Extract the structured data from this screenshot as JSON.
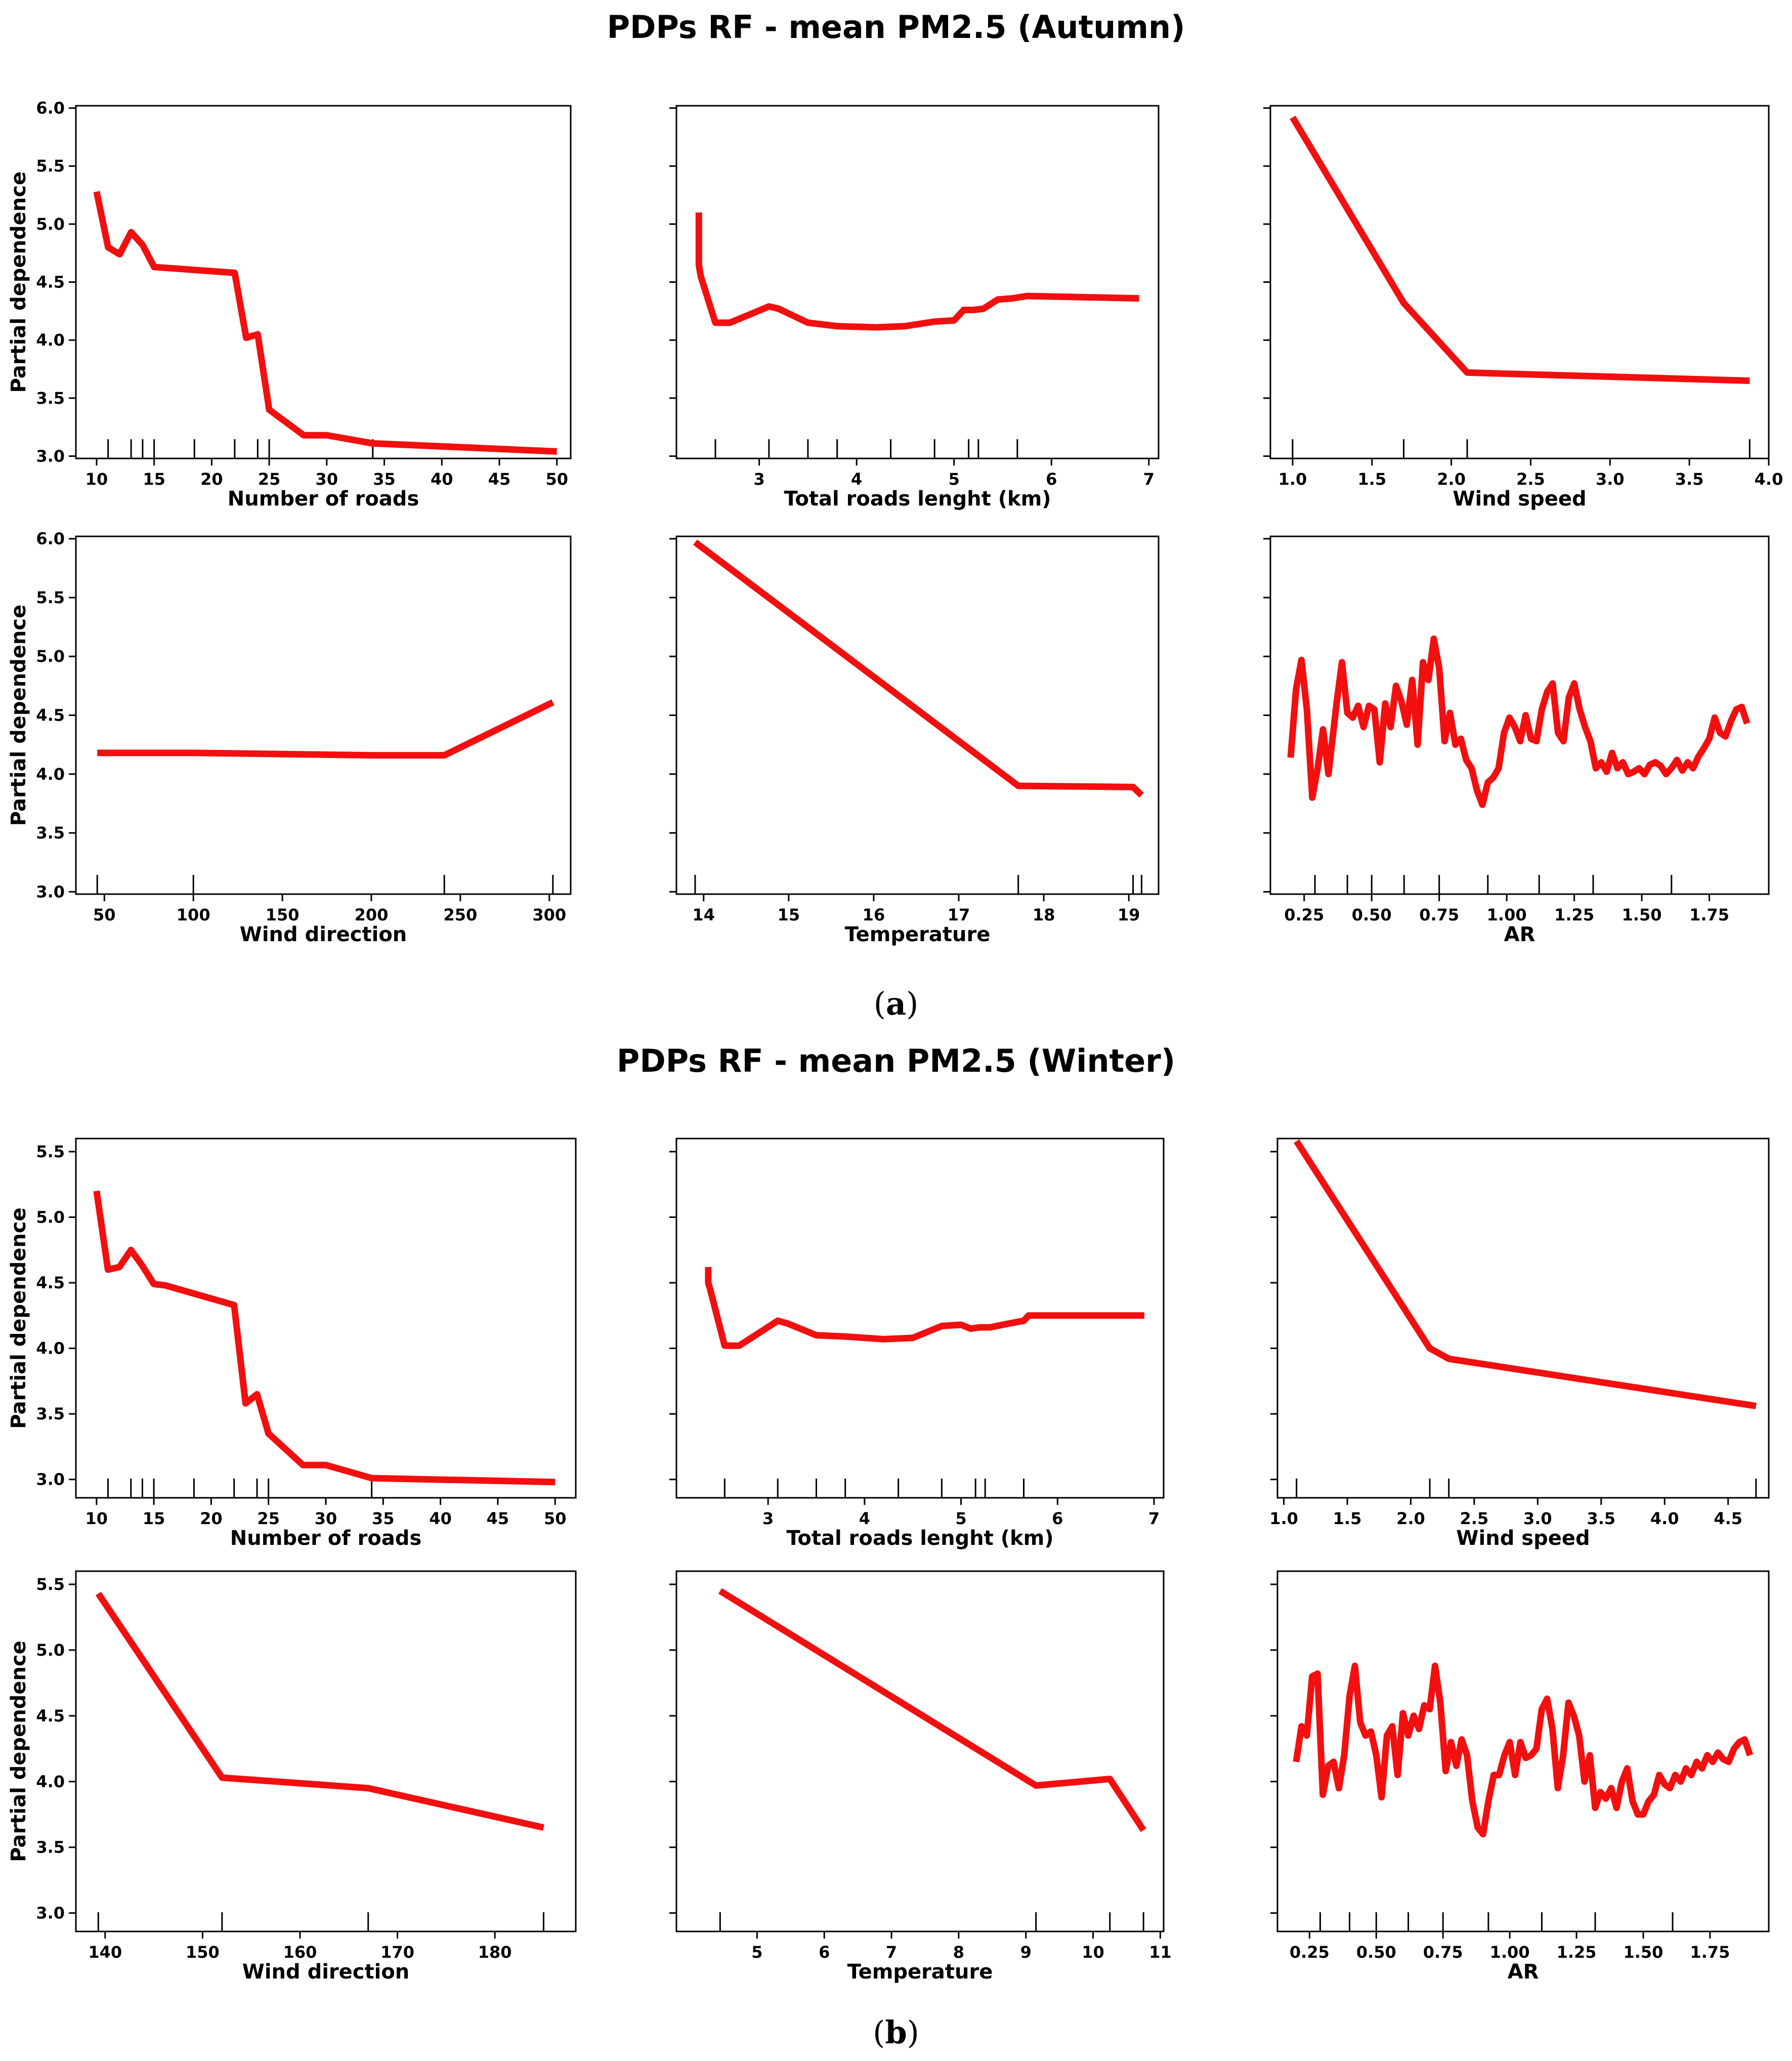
{
  "figure_a": {
    "title": "PDPs RF - mean PM2.5 (Autumn)",
    "caption": {
      "open": "(",
      "letter": "a",
      "close": ")"
    }
  },
  "figure_b": {
    "title": "PDPs RF - mean PM2.5 (Winter)",
    "caption": {
      "open": "(",
      "letter": "b",
      "close": ")"
    }
  },
  "style": {
    "line_color": "#f20f0f",
    "axis_color": "#000000"
  },
  "chart_data": [
    {
      "id": "a1",
      "type": "line",
      "figure": "a",
      "xlabel": "Number of roads",
      "ylabel": "Partial dependence",
      "xlim": [
        8.2,
        51.2
      ],
      "ylim": [
        2.98,
        6.02
      ],
      "xticks": [
        10,
        15,
        20,
        25,
        30,
        35,
        40,
        45,
        50
      ],
      "yticks": [
        3.0,
        3.5,
        4.0,
        4.5,
        5.0,
        5.5,
        6.0
      ],
      "ytick_labels": [
        "3.0",
        "3.5",
        "4.0",
        "4.5",
        "5.0",
        "5.5",
        "6.0"
      ],
      "rug": [
        11,
        13,
        14,
        15,
        18.5,
        22,
        24,
        25,
        34
      ],
      "x": [
        10,
        11,
        12,
        13,
        14,
        15,
        22,
        23,
        24,
        25,
        28,
        30,
        34,
        50
      ],
      "y": [
        5.28,
        4.8,
        4.74,
        4.93,
        4.82,
        4.63,
        4.58,
        4.02,
        4.05,
        3.4,
        3.18,
        3.18,
        3.11,
        3.04
      ]
    },
    {
      "id": "a2",
      "type": "line",
      "figure": "a",
      "xlabel": "Total roads lenght (km)",
      "ylabel": "",
      "xlim": [
        2.15,
        7.1
      ],
      "ylim": [
        2.98,
        6.02
      ],
      "xticks": [
        3,
        4,
        5,
        6,
        7
      ],
      "yticks": [
        3.0,
        3.5,
        4.0,
        4.5,
        5.0,
        5.5,
        6.0
      ],
      "rug": [
        2.55,
        3.1,
        3.5,
        3.8,
        4.35,
        4.8,
        5.15,
        5.25,
        5.65
      ],
      "x": [
        2.38,
        2.38,
        2.4,
        2.55,
        2.7,
        3.1,
        3.2,
        3.5,
        3.8,
        4.2,
        4.5,
        4.8,
        5.0,
        5.1,
        5.2,
        5.3,
        5.45,
        5.6,
        5.75,
        6.9
      ],
      "y": [
        5.1,
        4.65,
        4.55,
        4.15,
        4.15,
        4.29,
        4.27,
        4.15,
        4.12,
        4.11,
        4.12,
        4.16,
        4.17,
        4.26,
        4.26,
        4.27,
        4.35,
        4.36,
        4.38,
        4.36
      ]
    },
    {
      "id": "a3",
      "type": "line",
      "figure": "a",
      "xlabel": "Wind speed",
      "ylabel": "",
      "xlim": [
        0.86,
        4.0
      ],
      "ylim": [
        2.98,
        6.02
      ],
      "xticks": [
        1.0,
        1.5,
        2.0,
        2.5,
        3.0,
        3.5,
        4.0
      ],
      "xtick_labels": [
        "1.0",
        "1.5",
        "2.0",
        "2.5",
        "3.0",
        "3.5",
        "4.0"
      ],
      "yticks": [
        3.0,
        3.5,
        4.0,
        4.5,
        5.0,
        5.5,
        6.0
      ],
      "rug": [
        1.0,
        1.7,
        2.1,
        3.88
      ],
      "x": [
        1.0,
        1.7,
        2.1,
        3.88
      ],
      "y": [
        5.92,
        4.32,
        3.72,
        3.65
      ]
    },
    {
      "id": "a4",
      "type": "line",
      "figure": "a",
      "xlabel": "Wind direction",
      "ylabel": "Partial dependence",
      "xlim": [
        34,
        312
      ],
      "ylim": [
        2.98,
        6.02
      ],
      "xticks": [
        50,
        100,
        150,
        200,
        250,
        300
      ],
      "yticks": [
        3.0,
        3.5,
        4.0,
        4.5,
        5.0,
        5.5,
        6.0
      ],
      "ytick_labels": [
        "3.0",
        "3.5",
        "4.0",
        "4.5",
        "5.0",
        "5.5",
        "6.0"
      ],
      "rug": [
        46,
        100,
        241,
        302
      ],
      "x": [
        46,
        100,
        150,
        200,
        241,
        302
      ],
      "y": [
        4.18,
        4.18,
        4.17,
        4.16,
        4.16,
        4.61
      ]
    },
    {
      "id": "a5",
      "type": "line",
      "figure": "a",
      "xlabel": "Temperature",
      "ylabel": "",
      "xlim": [
        13.68,
        19.35
      ],
      "ylim": [
        2.98,
        6.02
      ],
      "xticks": [
        14,
        15,
        16,
        17,
        18,
        19
      ],
      "yticks": [
        3.0,
        3.5,
        4.0,
        4.5,
        5.0,
        5.5,
        6.0
      ],
      "rug": [
        13.9,
        17.7,
        19.05,
        19.15
      ],
      "x": [
        13.9,
        17.7,
        19.05,
        19.15
      ],
      "y": [
        5.97,
        3.9,
        3.89,
        3.82
      ]
    },
    {
      "id": "a6",
      "type": "line",
      "figure": "a",
      "xlabel": "AR",
      "ylabel": "",
      "xlim": [
        0.125,
        1.97
      ],
      "ylim": [
        2.98,
        6.02
      ],
      "xticks": [
        0.25,
        0.5,
        0.75,
        1.0,
        1.25,
        1.5,
        1.75
      ],
      "xtick_labels": [
        "0.25",
        "0.50",
        "0.75",
        "1.00",
        "1.25",
        "1.50",
        "1.75"
      ],
      "yticks": [
        3.0,
        3.5,
        4.0,
        4.5,
        5.0,
        5.5,
        6.0
      ],
      "rug": [
        0.29,
        0.41,
        0.5,
        0.62,
        0.75,
        0.93,
        1.12,
        1.32,
        1.61
      ],
      "x": [
        0.2,
        0.22,
        0.24,
        0.26,
        0.28,
        0.3,
        0.32,
        0.34,
        0.37,
        0.39,
        0.41,
        0.43,
        0.45,
        0.47,
        0.49,
        0.51,
        0.53,
        0.55,
        0.57,
        0.59,
        0.61,
        0.63,
        0.65,
        0.67,
        0.69,
        0.71,
        0.73,
        0.75,
        0.77,
        0.79,
        0.81,
        0.83,
        0.85,
        0.87,
        0.89,
        0.91,
        0.93,
        0.95,
        0.97,
        0.99,
        1.01,
        1.03,
        1.05,
        1.07,
        1.09,
        1.11,
        1.13,
        1.15,
        1.17,
        1.19,
        1.21,
        1.23,
        1.25,
        1.27,
        1.29,
        1.31,
        1.33,
        1.35,
        1.37,
        1.39,
        1.41,
        1.43,
        1.45,
        1.47,
        1.49,
        1.51,
        1.53,
        1.55,
        1.57,
        1.59,
        1.61,
        1.63,
        1.65,
        1.67,
        1.69,
        1.71,
        1.73,
        1.75,
        1.77,
        1.79,
        1.81,
        1.83,
        1.85,
        1.87,
        1.89
      ],
      "y": [
        4.14,
        4.72,
        4.97,
        4.55,
        3.8,
        4.05,
        4.38,
        4.0,
        4.6,
        4.95,
        4.52,
        4.48,
        4.58,
        4.4,
        4.58,
        4.55,
        4.1,
        4.6,
        4.4,
        4.75,
        4.62,
        4.42,
        4.8,
        4.25,
        4.95,
        4.8,
        5.15,
        4.9,
        4.28,
        4.52,
        4.25,
        4.3,
        4.12,
        4.05,
        3.86,
        3.74,
        3.93,
        3.97,
        4.05,
        4.35,
        4.48,
        4.4,
        4.28,
        4.5,
        4.3,
        4.28,
        4.55,
        4.7,
        4.77,
        4.35,
        4.28,
        4.65,
        4.77,
        4.55,
        4.4,
        4.28,
        4.05,
        4.1,
        4.02,
        4.18,
        4.05,
        4.1,
        4.0,
        4.02,
        4.05,
        4.0,
        4.08,
        4.1,
        4.07,
        4.0,
        4.05,
        4.12,
        4.03,
        4.1,
        4.05,
        4.15,
        4.22,
        4.3,
        4.48,
        4.35,
        4.32,
        4.45,
        4.55,
        4.57,
        4.43
      ]
    },
    {
      "id": "b1",
      "type": "line",
      "figure": "b",
      "xlabel": "Number of roads",
      "ylabel": "Partial dependence",
      "xlim": [
        8.2,
        51.8
      ],
      "ylim": [
        2.86,
        5.6
      ],
      "xticks": [
        10,
        15,
        20,
        25,
        30,
        35,
        40,
        45,
        50
      ],
      "yticks": [
        3.0,
        3.5,
        4.0,
        4.5,
        5.0,
        5.5
      ],
      "ytick_labels": [
        "3.0",
        "3.5",
        "4.0",
        "4.5",
        "5.0",
        "5.5"
      ],
      "rug": [
        11,
        13,
        14,
        15,
        18.5,
        22,
        24,
        25,
        34
      ],
      "x": [
        10,
        11,
        12,
        13,
        14,
        15,
        16,
        22,
        23,
        24,
        25,
        28,
        30,
        34,
        50
      ],
      "y": [
        5.2,
        4.6,
        4.62,
        4.75,
        4.63,
        4.49,
        4.48,
        4.33,
        3.58,
        3.65,
        3.35,
        3.11,
        3.11,
        3.01,
        2.98
      ]
    },
    {
      "id": "b2",
      "type": "line",
      "figure": "b",
      "xlabel": "Total roads lenght (km)",
      "ylabel": "",
      "xlim": [
        2.05,
        7.1
      ],
      "ylim": [
        2.86,
        5.6
      ],
      "xticks": [
        3,
        4,
        5,
        6,
        7
      ],
      "yticks": [
        3.0,
        3.5,
        4.0,
        4.5,
        5.0,
        5.5
      ],
      "rug": [
        2.55,
        3.1,
        3.5,
        3.8,
        4.35,
        4.8,
        5.15,
        5.25,
        5.65
      ],
      "x": [
        2.38,
        2.38,
        2.4,
        2.55,
        2.7,
        3.1,
        3.2,
        3.5,
        3.8,
        4.2,
        4.5,
        4.8,
        5.0,
        5.1,
        5.2,
        5.3,
        5.5,
        5.65,
        5.7,
        6.9
      ],
      "y": [
        4.62,
        4.5,
        4.45,
        4.02,
        4.02,
        4.21,
        4.19,
        4.1,
        4.09,
        4.07,
        4.08,
        4.17,
        4.18,
        4.15,
        4.16,
        4.16,
        4.19,
        4.21,
        4.25,
        4.25
      ]
    },
    {
      "id": "b3",
      "type": "line",
      "figure": "b",
      "xlabel": "Wind speed",
      "ylabel": "",
      "xlim": [
        0.95,
        4.82
      ],
      "ylim": [
        2.86,
        5.6
      ],
      "xticks": [
        1.0,
        1.5,
        2.0,
        2.5,
        3.0,
        3.5,
        4.0,
        4.5
      ],
      "xtick_labels": [
        "1.0",
        "1.5",
        "2.0",
        "2.5",
        "3.0",
        "3.5",
        "4.0",
        "4.5"
      ],
      "yticks": [
        3.0,
        3.5,
        4.0,
        4.5,
        5.0,
        5.5
      ],
      "rug": [
        1.1,
        2.15,
        2.3,
        4.72
      ],
      "x": [
        1.1,
        2.15,
        2.3,
        4.72
      ],
      "y": [
        5.58,
        4.0,
        3.92,
        3.56
      ]
    },
    {
      "id": "b4",
      "type": "line",
      "figure": "b",
      "xlabel": "Wind direction",
      "ylabel": "Partial dependence",
      "xlim": [
        137,
        188.3
      ],
      "ylim": [
        2.86,
        5.6
      ],
      "xticks": [
        140,
        150,
        160,
        170,
        180
      ],
      "yticks": [
        3.0,
        3.5,
        4.0,
        4.5,
        5.0,
        5.5
      ],
      "ytick_labels": [
        "3.0",
        "3.5",
        "4.0",
        "4.5",
        "5.0",
        "5.5"
      ],
      "rug": [
        139.3,
        152,
        167,
        185
      ],
      "x": [
        139.3,
        152,
        167,
        185
      ],
      "y": [
        5.43,
        4.03,
        3.95,
        3.65
      ]
    },
    {
      "id": "b5",
      "type": "line",
      "figure": "b",
      "xlabel": "Temperature",
      "ylabel": "",
      "xlim": [
        3.8,
        11.05
      ],
      "ylim": [
        2.86,
        5.6
      ],
      "xticks": [
        5,
        6,
        7,
        8,
        9,
        10,
        11
      ],
      "yticks": [
        3.0,
        3.5,
        4.0,
        4.5,
        5.0,
        5.5
      ],
      "rug": [
        4.45,
        9.15,
        10.25,
        10.75
      ],
      "x": [
        4.45,
        9.15,
        10.25,
        10.75
      ],
      "y": [
        5.45,
        3.97,
        4.02,
        3.63
      ]
    },
    {
      "id": "b6",
      "type": "line",
      "figure": "b",
      "xlabel": "AR",
      "ylabel": "",
      "xlim": [
        0.13,
        1.97
      ],
      "ylim": [
        2.86,
        5.6
      ],
      "xticks": [
        0.25,
        0.5,
        0.75,
        1.0,
        1.25,
        1.5,
        1.75
      ],
      "xtick_labels": [
        "0.25",
        "0.50",
        "0.75",
        "1.00",
        "1.25",
        "1.50",
        "1.75"
      ],
      "yticks": [
        3.0,
        3.5,
        4.0,
        4.5,
        5.0,
        5.5
      ],
      "rug": [
        0.29,
        0.4,
        0.5,
        0.62,
        0.75,
        0.92,
        1.12,
        1.32,
        1.61
      ],
      "x": [
        0.2,
        0.22,
        0.24,
        0.26,
        0.28,
        0.3,
        0.32,
        0.34,
        0.36,
        0.38,
        0.4,
        0.42,
        0.44,
        0.46,
        0.48,
        0.5,
        0.52,
        0.54,
        0.56,
        0.58,
        0.6,
        0.62,
        0.64,
        0.66,
        0.68,
        0.7,
        0.72,
        0.74,
        0.76,
        0.78,
        0.8,
        0.82,
        0.84,
        0.86,
        0.88,
        0.9,
        0.92,
        0.94,
        0.96,
        0.98,
        1.0,
        1.02,
        1.04,
        1.06,
        1.08,
        1.1,
        1.12,
        1.14,
        1.16,
        1.18,
        1.2,
        1.22,
        1.24,
        1.26,
        1.28,
        1.3,
        1.32,
        1.34,
        1.36,
        1.38,
        1.4,
        1.42,
        1.44,
        1.46,
        1.48,
        1.5,
        1.52,
        1.54,
        1.56,
        1.58,
        1.6,
        1.62,
        1.64,
        1.66,
        1.68,
        1.7,
        1.72,
        1.74,
        1.76,
        1.78,
        1.8,
        1.82,
        1.84,
        1.86,
        1.88,
        1.9
      ],
      "y": [
        4.15,
        4.42,
        4.35,
        4.8,
        4.82,
        3.9,
        4.12,
        4.15,
        3.95,
        4.2,
        4.65,
        4.88,
        4.45,
        4.35,
        4.38,
        4.2,
        3.88,
        4.35,
        4.42,
        4.05,
        4.52,
        4.35,
        4.5,
        4.4,
        4.58,
        4.55,
        4.88,
        4.6,
        4.08,
        4.3,
        4.12,
        4.32,
        4.2,
        3.85,
        3.65,
        3.6,
        3.85,
        4.05,
        4.05,
        4.2,
        4.3,
        4.05,
        4.3,
        4.18,
        4.2,
        4.25,
        4.55,
        4.63,
        4.4,
        3.95,
        4.2,
        4.6,
        4.5,
        4.35,
        4.0,
        4.2,
        3.8,
        3.92,
        3.87,
        3.95,
        3.8,
        4.0,
        4.1,
        3.85,
        3.75,
        3.75,
        3.85,
        3.9,
        4.05,
        3.98,
        3.95,
        4.05,
        4.0,
        4.1,
        4.05,
        4.15,
        4.1,
        4.2,
        4.15,
        4.22,
        4.17,
        4.15,
        4.25,
        4.3,
        4.32,
        4.2
      ]
    }
  ]
}
